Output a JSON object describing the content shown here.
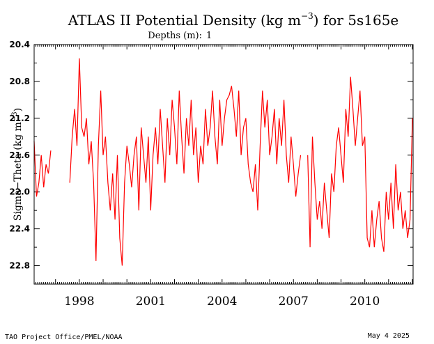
{
  "title_pre": "ATLAS II Potential Density (kg m",
  "title_exp": "−3",
  "title_post": ") for 5s165e",
  "depths_label": "Depths (m):",
  "depth_value": "1",
  "ylabel_pre": "Sigma−Theta (kg m",
  "ylabel_exp": "−3",
  "ylabel_post": ")",
  "footer_left": "TAO Project Office/PMEL/NOAA",
  "footer_right": "May  4 2025",
  "colors": {
    "series": "#ff0000",
    "axis": "#000000",
    "depth_value": "#ff0000"
  },
  "chart_data": {
    "type": "line",
    "xlim": [
      1996.1,
      2012.03
    ],
    "ylim": [
      20.4,
      23.0
    ],
    "y_inverted": true,
    "x_ticks": [
      1998,
      2001,
      2004,
      2007,
      2010
    ],
    "x_tick_labels": [
      "1998",
      "2001",
      "2004",
      "2007",
      "2010"
    ],
    "y_ticks": [
      20.4,
      20.8,
      21.2,
      21.6,
      22.0,
      22.4,
      22.8
    ],
    "y_tick_labels": [
      "20.4",
      "20.8",
      "21.2",
      "21.6",
      "22.0",
      "22.4",
      "22.8"
    ],
    "grid": false,
    "series": [
      {
        "x": [
          1996.1,
          1996.2,
          1996.3,
          1996.4,
          1996.5,
          1996.6,
          1996.7,
          1996.8,
          1997.6,
          1997.7,
          1997.8,
          1997.9,
          1998.0,
          1998.1,
          1998.2,
          1998.3,
          1998.4,
          1998.5,
          1998.6,
          1998.7,
          1998.8,
          1998.9,
          1999.0,
          1999.1,
          1999.2,
          1999.3,
          1999.4,
          1999.5,
          1999.6,
          1999.7,
          1999.8,
          1999.9,
          2000.0,
          2000.1,
          2000.2,
          2000.3,
          2000.4,
          2000.5,
          2000.6,
          2000.7,
          2000.8,
          2000.9,
          2001.0,
          2001.1,
          2001.2,
          2001.3,
          2001.4,
          2001.5,
          2001.6,
          2001.7,
          2001.8,
          2001.9,
          2002.0,
          2002.1,
          2002.2,
          2002.3,
          2002.4,
          2002.5,
          2002.6,
          2002.7,
          2002.8,
          2002.9,
          2003.0,
          2003.1,
          2003.2,
          2003.3,
          2003.4,
          2003.5,
          2003.6,
          2003.7,
          2003.8,
          2003.9,
          2004.0,
          2004.1,
          2004.2,
          2004.3,
          2004.4,
          2004.5,
          2004.6,
          2004.7,
          2004.8,
          2004.9,
          2005.0,
          2005.1,
          2005.2,
          2005.3,
          2005.4,
          2005.5,
          2005.6,
          2005.7,
          2005.8,
          2005.9,
          2006.0,
          2006.1,
          2006.2,
          2006.3,
          2006.4,
          2006.5,
          2006.6,
          2006.7,
          2006.8,
          2006.9,
          2007.0,
          2007.1,
          2007.2,
          2007.3,
          2007.6,
          2007.7,
          2007.8,
          2007.9,
          2008.0,
          2008.1,
          2008.2,
          2008.3,
          2008.4,
          2008.5,
          2008.6,
          2008.7,
          2008.8,
          2008.9,
          2009.0,
          2009.1,
          2009.2,
          2009.3,
          2009.4,
          2009.5,
          2009.6,
          2009.7,
          2009.8,
          2009.9,
          2010.0,
          2010.1,
          2010.2,
          2010.3,
          2010.4,
          2010.5,
          2010.6,
          2010.7,
          2010.8,
          2010.9,
          2011.0,
          2011.1,
          2011.2,
          2011.3,
          2011.4,
          2011.5,
          2011.6,
          2011.7,
          2011.8,
          2011.9,
          2012.0
        ],
        "y": [
          21.45,
          22.05,
          21.9,
          21.6,
          21.95,
          21.7,
          21.8,
          21.55,
          21.9,
          21.4,
          21.1,
          21.5,
          20.55,
          21.3,
          21.4,
          21.2,
          21.7,
          21.45,
          21.9,
          22.75,
          21.5,
          20.9,
          21.6,
          21.4,
          21.9,
          22.2,
          21.8,
          22.3,
          21.6,
          22.5,
          22.8,
          21.9,
          21.5,
          21.7,
          21.95,
          21.6,
          21.4,
          22.2,
          21.3,
          21.6,
          21.9,
          21.4,
          22.2,
          21.6,
          21.3,
          21.7,
          21.1,
          21.5,
          21.9,
          21.2,
          21.6,
          21.0,
          21.3,
          21.7,
          20.9,
          21.4,
          21.8,
          21.2,
          21.5,
          21.0,
          21.6,
          21.3,
          21.9,
          21.5,
          21.7,
          21.1,
          21.5,
          21.3,
          20.9,
          21.4,
          21.7,
          21.0,
          21.5,
          21.2,
          21.0,
          20.95,
          20.85,
          21.1,
          21.4,
          20.9,
          21.6,
          21.3,
          21.2,
          21.7,
          21.9,
          22.0,
          21.7,
          22.2,
          21.5,
          20.9,
          21.3,
          21.0,
          21.6,
          21.4,
          21.1,
          21.7,
          21.2,
          21.5,
          21.0,
          21.6,
          21.9,
          21.4,
          21.7,
          22.05,
          21.8,
          21.6,
          21.6,
          22.6,
          21.4,
          21.9,
          22.3,
          22.1,
          22.4,
          21.9,
          22.2,
          22.5,
          21.8,
          22.0,
          21.5,
          21.3,
          21.6,
          21.9,
          21.1,
          21.4,
          20.75,
          21.1,
          21.5,
          21.2,
          20.9,
          21.5,
          21.4,
          22.5,
          22.6,
          22.2,
          22.6,
          22.3,
          22.1,
          22.5,
          22.65,
          22.0,
          22.3,
          21.9,
          22.4,
          21.7,
          22.2,
          22.0,
          22.4,
          22.2,
          22.5,
          22.3,
          21.2
        ]
      }
    ]
  }
}
